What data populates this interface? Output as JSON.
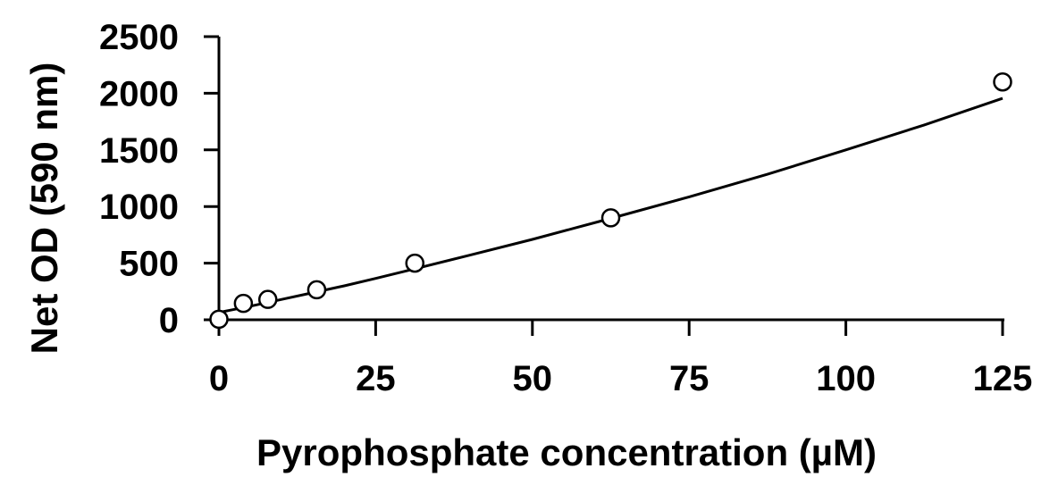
{
  "chart_data": {
    "type": "scatter",
    "title": "",
    "xlabel": "Pyrophosphate concentration (µM)",
    "ylabel": "Net OD (590 nm)",
    "xlim": [
      0,
      125
    ],
    "ylim": [
      0,
      2500
    ],
    "xticks": [
      0,
      25,
      50,
      75,
      100,
      125
    ],
    "yticks": [
      0,
      500,
      1000,
      1500,
      2000,
      2500
    ],
    "xtick_labels": [
      "0",
      "25",
      "50",
      "75",
      "100",
      "125"
    ],
    "ytick_labels": [
      "0",
      "500",
      "1000",
      "1500",
      "2000",
      "2500"
    ],
    "grid": false,
    "legend": "none",
    "series": [
      {
        "marker": "open-circle",
        "x": [
          0,
          3.9,
          7.8,
          15.6,
          31.25,
          62.5,
          125
        ],
        "y": [
          5,
          145,
          180,
          265,
          500,
          900,
          2100
        ]
      }
    ],
    "fit_curve": {
      "x": [
        0,
        5,
        10,
        15,
        20,
        25,
        31.25,
        40,
        50,
        62.5,
        75,
        87.5,
        100,
        112.5,
        125
      ],
      "y": [
        65,
        120,
        180,
        240,
        300,
        365,
        450,
        570,
        710,
        895,
        1085,
        1285,
        1500,
        1720,
        1955
      ]
    },
    "colors": {
      "marks": "#000000",
      "background": "#ffffff"
    }
  }
}
